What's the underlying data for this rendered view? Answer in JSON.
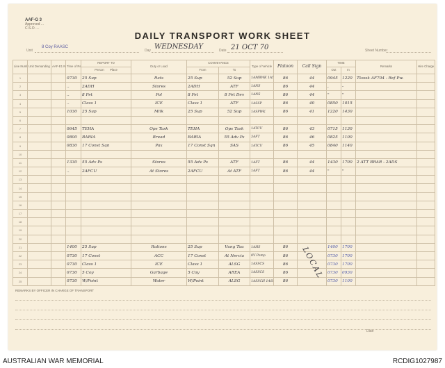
{
  "form": {
    "code": "AAF-G 3",
    "sub1": "Approved ...",
    "sub2": "C.S.O. ..."
  },
  "title": "DAILY TRANSPORT WORK SHEET",
  "fields": {
    "unit_label": "Unit",
    "unit_value": "8 Coy RAASC",
    "day_label": "Day",
    "day_value": "WEDNESDAY",
    "date_label": "Date",
    "date_value": "21 OCT 70",
    "sheet_label": "Sheet Number",
    "sheet_value": ""
  },
  "headers": {
    "line": "Line Number",
    "unit": "Unit Demanding Transport",
    "aaf": "AAF-E1 Number",
    "time": "Time of Reporting",
    "report_to": "REPORT TO",
    "person": "Person",
    "place": "Place",
    "duty": "Duty or Load",
    "conveyance": "CONVEYANCE",
    "from": "From",
    "to": "To",
    "vtype": "Type of Vehicle",
    "vnum": "Platoon",
    "callsign": "Call Sign",
    "time_group": "TIME",
    "out": "Out",
    "in": "In",
    "remarks": "Remarks",
    "hire": "Hire Charge"
  },
  "rows": [
    {
      "n": "1",
      "time": "0730",
      "person": "25 Sup",
      "duty": "Rats",
      "from": "25 Sup",
      "to": "52 Sup",
      "vtype": "1AMBWK 1ANSSP",
      "vnum": "86",
      "call": "44",
      "out": "0945",
      "in": "1220",
      "remarks": "Tkswk AF704 - Ref Pw."
    },
    {
      "n": "2",
      "time": "..",
      "person": "2ADH",
      "duty": "Stores",
      "from": "2ADH",
      "to": "ATF",
      "vtype": "1ANS",
      "vnum": "86",
      "call": "44",
      "out": ",",
      "in": "-",
      "remarks": ""
    },
    {
      "n": "3",
      "time": "..",
      "person": "8 Fet",
      "duty": "Pol",
      "from": "8 Fet",
      "to": "8 Fet Dev",
      "vtype": "1ANS",
      "vnum": "86",
      "call": "44",
      "out": "\"",
      "in": "\"",
      "remarks": ""
    },
    {
      "n": "4",
      "time": "..",
      "person": "Class 1",
      "duty": "ICE",
      "from": "Class 1",
      "to": "ATF",
      "vtype": "1ASSP",
      "vnum": "86",
      "call": "40",
      "out": "0850",
      "in": "1015",
      "remarks": ""
    },
    {
      "n": "5",
      "time": "1030",
      "person": "25 Sup",
      "duty": "Milk",
      "from": "25 Sup",
      "to": "52 Sup",
      "vtype": "1ASPWK",
      "vnum": "86",
      "call": "41",
      "out": "1220",
      "in": "1430",
      "remarks": ""
    },
    {
      "n": "6"
    },
    {
      "n": "7",
      "time": "0645",
      "person": "TEHA",
      "duty": "Ops Task",
      "from": "TEHA",
      "to": "Ops Task",
      "vtype": "1ATCU",
      "vnum": "86",
      "call": "43",
      "out": "0715",
      "in": "1130",
      "remarks": ""
    },
    {
      "n": "8",
      "time": "0800",
      "person": "BARIA",
      "duty": "Bread",
      "from": "BARIA",
      "to": "55 Adv Ps",
      "vtype": "3AFT",
      "vnum": "86",
      "call": "46",
      "out": "0825",
      "in": "1100",
      "remarks": ""
    },
    {
      "n": "9",
      "time": "0830",
      "person": "17 Const Sqn",
      "duty": "Pax",
      "from": "17 Const Sqn",
      "to": "SAS",
      "vtype": "1ATCU",
      "vnum": "86",
      "call": "45",
      "out": "0840",
      "in": "1140",
      "remarks": ""
    },
    {
      "n": "10"
    },
    {
      "n": "11",
      "time": "1330",
      "person": "55 Adv Ps",
      "duty": "Stores",
      "from": "55 Adv Ps",
      "to": "ATF",
      "vtype": "1AFT",
      "vnum": "86",
      "call": "44",
      "out": "1430",
      "in": "1700",
      "remarks": "2 ATT BRAR - 2ADS"
    },
    {
      "n": "12",
      "time": "..",
      "person": "2AFCU",
      "duty": "At Stores",
      "from": "2AFCU",
      "to": "At ATF",
      "vtype": "1AFT",
      "vnum": "86",
      "call": "44",
      "out": "\"",
      "in": "\"",
      "remarks": ""
    },
    {
      "n": "13"
    },
    {
      "n": "14"
    },
    {
      "n": "15"
    },
    {
      "n": "16"
    },
    {
      "n": "17"
    },
    {
      "n": "18"
    },
    {
      "n": "19"
    },
    {
      "n": "20"
    },
    {
      "n": "21",
      "time": "1400",
      "person": "25 Sup",
      "duty": "Rations",
      "from": "25 Sup",
      "to": "Vung Tau",
      "vtype": "1AHS",
      "vnum": "86",
      "call": "",
      "out": "1400",
      "in": "1700",
      "remarks": ""
    },
    {
      "n": "22",
      "time": "0730",
      "person": "17 Const",
      "duty": "ACC",
      "from": "17 Const",
      "to": "At Nercia",
      "vtype": "8V Pomp",
      "vnum": "86",
      "call": "",
      "out": "0730",
      "in": "1700",
      "remarks": ""
    },
    {
      "n": "23",
      "time": "0730",
      "person": "Class 1",
      "duty": "ICE",
      "from": "Class 1",
      "to": "ALSG",
      "vtype": "1ASSCS",
      "vnum": "86",
      "call": "",
      "out": "0730",
      "in": "1700",
      "remarks": ""
    },
    {
      "n": "24",
      "time": "0730",
      "person": "5 Coy",
      "duty": "Garbage",
      "from": "5 Coy",
      "to": "AREA",
      "vtype": "1ASSCS",
      "vnum": "86",
      "call": "",
      "out": "0730",
      "in": "0930",
      "remarks": ""
    },
    {
      "n": "25",
      "time": "0730",
      "person": "W/Point",
      "duty": "Water",
      "from": "W/Point",
      "to": "ALSG",
      "vtype": "1ASSCH 1ASSCH",
      "vnum": "86",
      "call": "",
      "out": "0730",
      "in": "1100",
      "remarks": ""
    }
  ],
  "local_note": "LOCAL",
  "remarks_label": "REMARKS BY OFFICER IN CHARGE OF TRANSPORT",
  "date_footer_label": "Date",
  "footer": {
    "left": "AUSTRALIAN WAR MEMORIAL",
    "right": "RCDIG1027987"
  }
}
